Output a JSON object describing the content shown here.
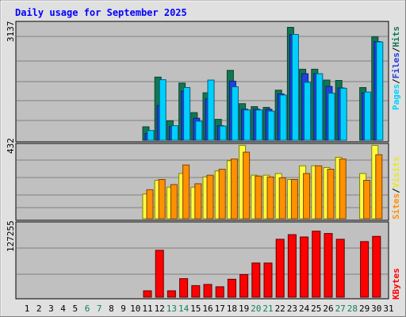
{
  "title": "Daily usage for September 2025",
  "chart_data": [
    {
      "type": "bar",
      "name": "hits-files-pages",
      "ymax_label": "3137",
      "ymax": 3137,
      "legend": [
        "Pages",
        "Files",
        "Hits"
      ],
      "legend_separator": "/",
      "colors": {
        "Hits": "#107850",
        "Files": "#2040e0",
        "Pages": "#00d0ff"
      },
      "categories": [
        "1",
        "2",
        "3",
        "4",
        "5",
        "6",
        "7",
        "8",
        "9",
        "10",
        "11",
        "12",
        "13",
        "14",
        "15",
        "16",
        "17",
        "18",
        "19",
        "20",
        "21",
        "22",
        "23",
        "24",
        "25",
        "26",
        "27",
        "28",
        "29",
        "30",
        "31"
      ],
      "series": [
        {
          "name": "Hits",
          "values": [
            0,
            0,
            0,
            0,
            0,
            0,
            0,
            0,
            0,
            0,
            360,
            1690,
            520,
            1530,
            740,
            1270,
            560,
            1870,
            980,
            900,
            880,
            1340,
            3020,
            1900,
            1900,
            1610,
            1600,
            0,
            1410,
            2770,
            0
          ]
        },
        {
          "name": "Files",
          "values": [
            0,
            0,
            0,
            0,
            0,
            0,
            0,
            0,
            0,
            0,
            180,
            930,
            370,
            1310,
            590,
            1110,
            390,
            1580,
            830,
            830,
            830,
            1240,
            2830,
            1780,
            1780,
            1440,
            1400,
            0,
            1270,
            2640,
            0
          ]
        },
        {
          "name": "Pages",
          "values": [
            0,
            0,
            0,
            0,
            0,
            0,
            0,
            0,
            0,
            0,
            260,
            1620,
            390,
            1410,
            510,
            1610,
            380,
            1430,
            810,
            810,
            780,
            1210,
            2830,
            1550,
            1780,
            1260,
            1390,
            0,
            1290,
            2630,
            0
          ]
        }
      ]
    },
    {
      "type": "bar",
      "name": "visits-sites",
      "ymax_label": "432",
      "ymax": 432,
      "legend": [
        "Sites",
        "Visits"
      ],
      "legend_separator": "/",
      "colors": {
        "Visits": "#ffff40",
        "Sites": "#ff9000"
      },
      "categories": [
        "1",
        "2",
        "3",
        "4",
        "5",
        "6",
        "7",
        "8",
        "9",
        "10",
        "11",
        "12",
        "13",
        "14",
        "15",
        "16",
        "17",
        "18",
        "19",
        "20",
        "21",
        "22",
        "23",
        "24",
        "25",
        "26",
        "27",
        "28",
        "29",
        "30",
        "31"
      ],
      "series": [
        {
          "name": "Visits",
          "values": [
            0,
            0,
            0,
            0,
            0,
            0,
            0,
            0,
            0,
            0,
            145,
            225,
            185,
            265,
            185,
            245,
            280,
            340,
            430,
            255,
            255,
            265,
            230,
            310,
            310,
            300,
            360,
            0,
            265,
            430,
            0
          ]
        },
        {
          "name": "Sites",
          "values": [
            0,
            0,
            0,
            0,
            0,
            0,
            0,
            0,
            0,
            0,
            170,
            230,
            200,
            315,
            205,
            255,
            290,
            350,
            390,
            250,
            245,
            240,
            230,
            265,
            310,
            290,
            350,
            0,
            225,
            375,
            0
          ]
        }
      ]
    },
    {
      "type": "bar",
      "name": "kbytes",
      "ymax_label": "127255",
      "ymax": 127255,
      "legend": [
        "KBytes"
      ],
      "colors": {
        "KBytes": "#ff0000"
      },
      "categories": [
        "1",
        "2",
        "3",
        "4",
        "5",
        "6",
        "7",
        "8",
        "9",
        "10",
        "11",
        "12",
        "13",
        "14",
        "15",
        "16",
        "17",
        "18",
        "19",
        "20",
        "21",
        "22",
        "23",
        "24",
        "25",
        "26",
        "27",
        "28",
        "29",
        "30",
        "31"
      ],
      "series": [
        {
          "name": "KBytes",
          "values": [
            0,
            0,
            0,
            0,
            0,
            0,
            0,
            0,
            0,
            0,
            11000,
            81000,
            11000,
            32000,
            20000,
            22000,
            18000,
            31000,
            39000,
            59000,
            59000,
            100000,
            108000,
            104000,
            114000,
            110000,
            100000,
            0,
            96000,
            105000,
            0
          ]
        }
      ]
    }
  ],
  "x_labels": [
    "1",
    "2",
    "3",
    "4",
    "5",
    "6",
    "7",
    "8",
    "9",
    "10",
    "11",
    "12",
    "13",
    "14",
    "15",
    "16",
    "17",
    "18",
    "19",
    "20",
    "21",
    "22",
    "23",
    "24",
    "25",
    "26",
    "27",
    "28",
    "29",
    "30",
    "31"
  ],
  "weekend_days": [
    "6",
    "7",
    "13",
    "14",
    "20",
    "21",
    "27",
    "28"
  ],
  "colors": {
    "background": "#c0c0c0",
    "title": "#0000ff",
    "weekday_label": "#000000",
    "weekend_label": "#108060"
  }
}
